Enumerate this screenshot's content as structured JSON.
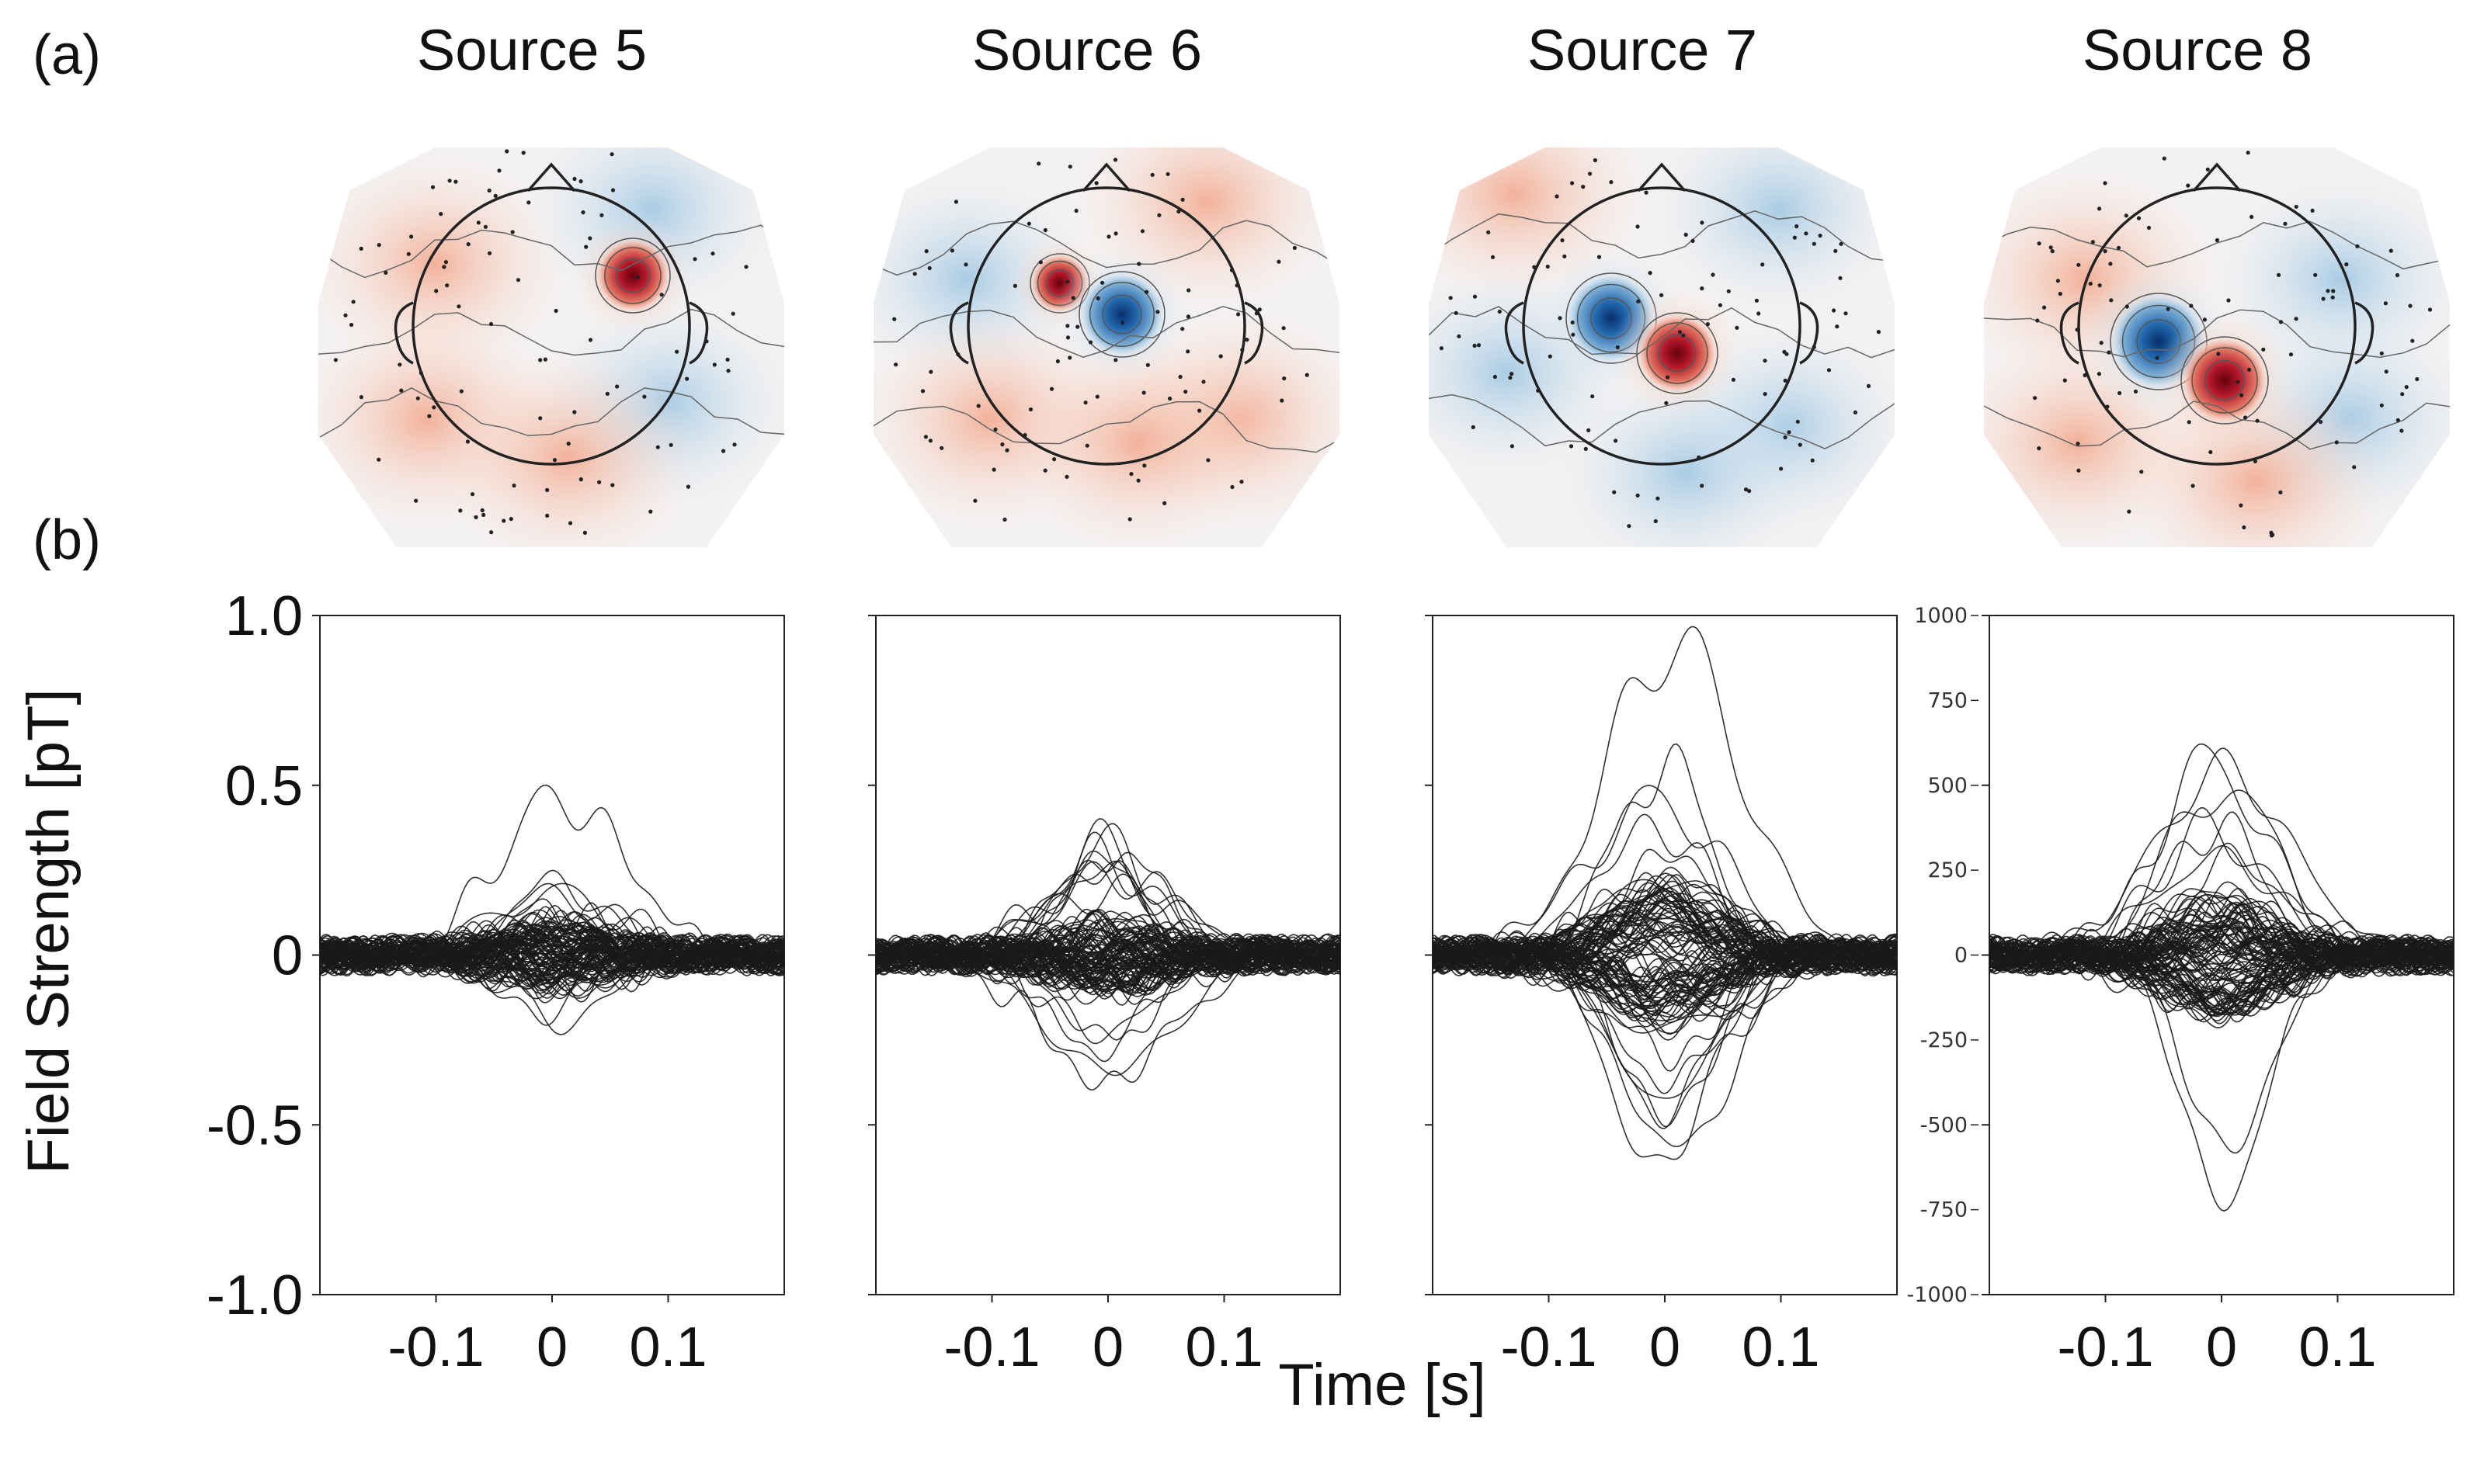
{
  "panels": {
    "a": "(a)",
    "b": "(b)"
  },
  "sources": [
    "Source 5",
    "Source 6",
    "Source 7",
    "Source 8"
  ],
  "colors": {
    "positive": "#b2182b",
    "negative": "#2166ac",
    "trace": "#1a1a1a"
  },
  "chart_data": [
    {
      "type": "line",
      "title": "Source 5",
      "xlabel": "Time [s]",
      "ylabel": "Field Strength [pT]",
      "xlim": [
        -0.2,
        0.2
      ],
      "ylim": [
        -1.0,
        1.0
      ],
      "x_ticks": [
        -0.1,
        0,
        0.1
      ],
      "x_tick_labels": [
        "-0.1",
        "0",
        "0.1"
      ],
      "y_ticks": [
        1.0,
        0.5,
        0,
        -0.5,
        -1.0
      ],
      "y_tick_labels": [
        "1.0",
        "0.5",
        "0",
        "-0.5",
        "-1.0"
      ],
      "peak_max": 0.46,
      "peak_min": -0.2,
      "peak_time": 0.0
    },
    {
      "type": "line",
      "title": "Source 6",
      "xlim": [
        -0.2,
        0.2
      ],
      "ylim": [
        -1.0,
        1.0
      ],
      "x_ticks": [
        -0.1,
        0,
        0.1
      ],
      "x_tick_labels": [
        "-0.1",
        "0",
        "0.1"
      ],
      "peak_max": 0.34,
      "peak_min": -0.37,
      "peak_time": 0.0
    },
    {
      "type": "line",
      "title": "Source 7",
      "xlim": [
        -0.2,
        0.2
      ],
      "ylim": [
        -1.0,
        1.0
      ],
      "x_ticks": [
        -0.1,
        0,
        0.1
      ],
      "x_tick_labels": [
        "-0.1",
        "0",
        "0.1"
      ],
      "peak_max": 0.92,
      "peak_min": -0.64,
      "peak_time": 0.0
    },
    {
      "type": "line",
      "title": "Source 8",
      "xlim": [
        -0.2,
        0.2
      ],
      "ylim": [
        -1000,
        1000
      ],
      "x_ticks": [
        -0.1,
        0,
        0.1
      ],
      "x_tick_labels": [
        "-0.1",
        "0",
        "0.1"
      ],
      "y_ticks": [
        1000,
        750,
        500,
        250,
        0,
        -250,
        -500,
        -750,
        -1000
      ],
      "y_tick_labels": [
        "1000",
        "750",
        "500",
        "250",
        "0",
        "-250",
        "-500",
        "-750",
        "-1000"
      ],
      "peak_max": 560,
      "peak_min": -710,
      "peak_time": 0.0
    }
  ]
}
